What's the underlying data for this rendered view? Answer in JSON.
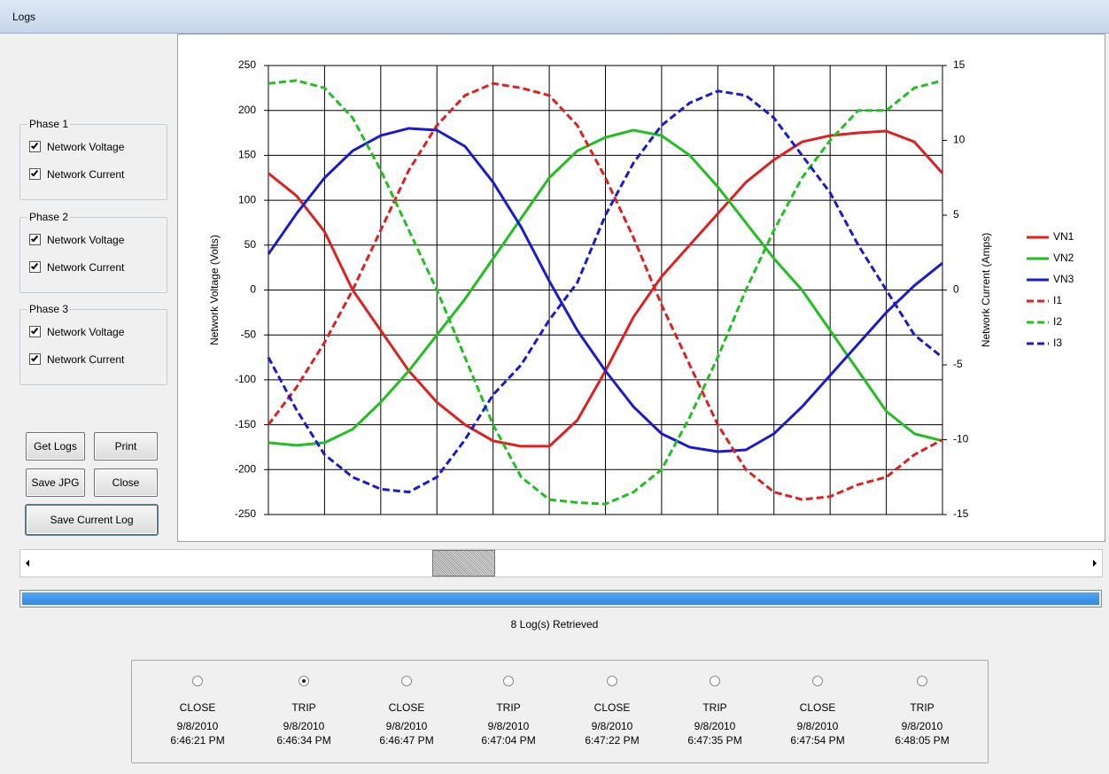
{
  "window": {
    "title": "Logs"
  },
  "phases": [
    {
      "label": "Phase 1",
      "options": [
        {
          "label": "Network Voltage",
          "checked": true
        },
        {
          "label": "Network Current",
          "checked": true
        }
      ]
    },
    {
      "label": "Phase 2",
      "options": [
        {
          "label": "Network Voltage",
          "checked": true
        },
        {
          "label": "Network Current",
          "checked": true
        }
      ]
    },
    {
      "label": "Phase 3",
      "options": [
        {
          "label": "Network Voltage",
          "checked": true
        },
        {
          "label": "Network Current",
          "checked": true
        }
      ]
    }
  ],
  "buttons": [
    "Get Logs",
    "Print",
    "Save JPG",
    "Close",
    "Save Current Log"
  ],
  "chart_data": {
    "type": "line",
    "y_label": "Network Voltage (Volts)",
    "y2_label": "Network Current (Amps)",
    "ylim": [
      -250,
      250
    ],
    "yticks": [
      -250,
      -200,
      -150,
      -100,
      -50,
      0,
      50,
      100,
      150,
      200,
      250
    ],
    "y2lim": [
      -15,
      15
    ],
    "y2ticks": [
      -15,
      -10,
      -5,
      0,
      5,
      10,
      15
    ],
    "grid": true,
    "legend": "right",
    "series": [
      {
        "name": "VN1",
        "color": "#e02020",
        "dashed": false,
        "values": [
          130,
          105,
          65,
          0,
          -45,
          -90,
          -125,
          -150,
          -168,
          -174,
          -174,
          -145,
          -90,
          -30,
          15,
          50,
          85,
          120,
          145,
          165,
          172,
          175,
          177,
          165,
          130
        ]
      },
      {
        "name": "VN2",
        "color": "#20c020",
        "dashed": false,
        "values": [
          -170,
          -173,
          -170,
          -155,
          -125,
          -90,
          -50,
          -10,
          35,
          80,
          125,
          155,
          170,
          178,
          172,
          150,
          115,
          75,
          35,
          0,
          -45,
          -90,
          -135,
          -160,
          -168
        ]
      },
      {
        "name": "VN3",
        "color": "#1a1ad0",
        "dashed": false,
        "values": [
          40,
          85,
          125,
          155,
          172,
          180,
          178,
          160,
          120,
          70,
          10,
          -45,
          -90,
          -130,
          -160,
          -175,
          -180,
          -178,
          -160,
          -130,
          -95,
          -60,
          -25,
          5,
          30
        ]
      },
      {
        "name": "I1",
        "color": "#e02020",
        "dashed": true,
        "axis": "y2",
        "values": [
          -9,
          -6.5,
          -3.5,
          0,
          4,
          8,
          11,
          13,
          13.8,
          13.5,
          13,
          11,
          7.5,
          3.5,
          -1,
          -5,
          -9,
          -12,
          -13.5,
          -14,
          -13.8,
          -13,
          -12.5,
          -11,
          -10
        ]
      },
      {
        "name": "I2",
        "color": "#20c020",
        "dashed": true,
        "axis": "y2",
        "values": [
          13.8,
          14,
          13.5,
          11.5,
          8,
          4,
          0,
          -4.5,
          -9,
          -12.5,
          -14,
          -14.2,
          -14.3,
          -13.5,
          -12,
          -8.5,
          -4.5,
          0,
          4,
          7.5,
          10,
          12,
          12,
          13.5,
          14
        ]
      },
      {
        "name": "I3",
        "color": "#1a1ad0",
        "dashed": true,
        "axis": "y2",
        "values": [
          -4.5,
          -8,
          -11,
          -12.5,
          -13.3,
          -13.5,
          -12.5,
          -10,
          -7,
          -5,
          -2,
          0.5,
          5,
          8.5,
          11,
          12.5,
          13.3,
          13,
          11.5,
          9,
          6.5,
          3,
          0,
          -3,
          -4.5
        ]
      }
    ]
  },
  "status": "8 Log(s) Retrieved",
  "logs": [
    {
      "event": "CLOSE",
      "date": "9/8/2010",
      "time": "6:46:21 PM",
      "selected": false
    },
    {
      "event": "TRIP",
      "date": "9/8/2010",
      "time": "6:46:34 PM",
      "selected": true
    },
    {
      "event": "CLOSE",
      "date": "9/8/2010",
      "time": "6:46:47 PM",
      "selected": false
    },
    {
      "event": "TRIP",
      "date": "9/8/2010",
      "time": "6:47:04 PM",
      "selected": false
    },
    {
      "event": "CLOSE",
      "date": "9/8/2010",
      "time": "6:47:22 PM",
      "selected": false
    },
    {
      "event": "TRIP",
      "date": "9/8/2010",
      "time": "6:47:35 PM",
      "selected": false
    },
    {
      "event": "CLOSE",
      "date": "9/8/2010",
      "time": "6:47:54 PM",
      "selected": false
    },
    {
      "event": "TRIP",
      "date": "9/8/2010",
      "time": "6:48:05 PM",
      "selected": false
    }
  ]
}
